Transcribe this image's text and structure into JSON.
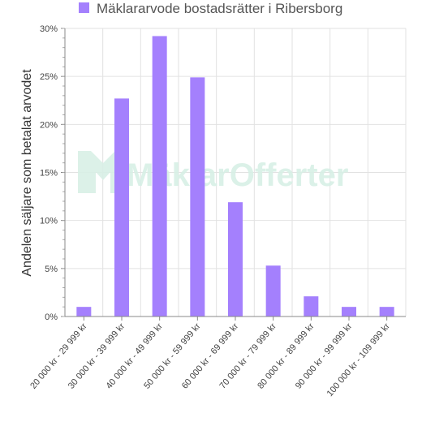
{
  "chart_data": {
    "type": "bar",
    "title": "",
    "legend": {
      "position": "top",
      "label": "Mäklararvode bostadsrätter i Ribersborg"
    },
    "ylabel": "Andelen säljare som betalat arvodet",
    "xlabel": "",
    "ylim": [
      0,
      30
    ],
    "yticks": [
      "0%",
      "5%",
      "10%",
      "15%",
      "20%",
      "25%",
      "30%"
    ],
    "categories": [
      "20 000 kr - 29 999 kr",
      "30 000 kr - 39 999 kr",
      "40 000 kr - 49 999 kr",
      "50 000 kr - 59 999 kr",
      "60 000 kr - 69 999 kr",
      "70 000 kr - 79 999 kr",
      "80 000 kr - 89 999 kr",
      "90 000 kr - 99 999 kr",
      "100 000 kr - 109 999 kr"
    ],
    "series": [
      {
        "name": "Mäklararvode bostadsrätter i Ribersborg",
        "values": [
          1,
          22.7,
          29.2,
          24.9,
          11.9,
          5.3,
          2.1,
          1,
          1
        ],
        "color": "#a480fd"
      }
    ],
    "grid": true
  },
  "watermark": {
    "text": "MäklarOfferter",
    "color": "#d8f0e6"
  }
}
